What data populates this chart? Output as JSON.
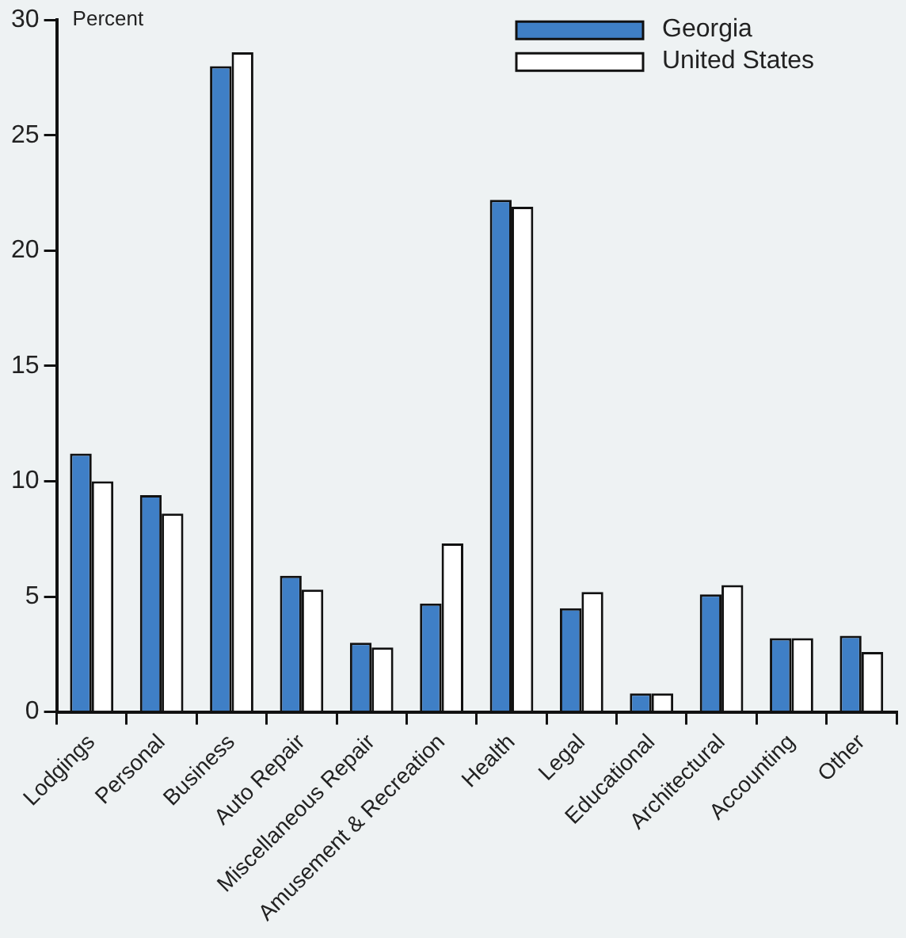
{
  "chart_data": {
    "type": "bar",
    "ylabel": "Percent",
    "categories": [
      "Lodgings",
      "Personal",
      "Business",
      "Auto Repair",
      "Miscellaneous Repair",
      "Amusement & Recreation",
      "Health",
      "Legal",
      "Educational",
      "Architectural",
      "Accounting",
      "Other"
    ],
    "series": [
      {
        "name": "Georgia",
        "color": "#3f7fc6",
        "values": [
          11.2,
          9.4,
          28.0,
          5.9,
          3.0,
          4.7,
          22.2,
          4.5,
          0.8,
          5.1,
          3.2,
          3.3
        ]
      },
      {
        "name": "United States",
        "color": "#ffffff",
        "values": [
          10.0,
          8.6,
          28.6,
          5.3,
          2.8,
          7.3,
          21.9,
          5.2,
          0.8,
          5.5,
          3.2,
          2.6
        ]
      }
    ],
    "ylim": [
      0,
      30
    ],
    "yticks": [
      0,
      5,
      10,
      15,
      20,
      25,
      30
    ],
    "grid": false,
    "legend": "top right"
  }
}
